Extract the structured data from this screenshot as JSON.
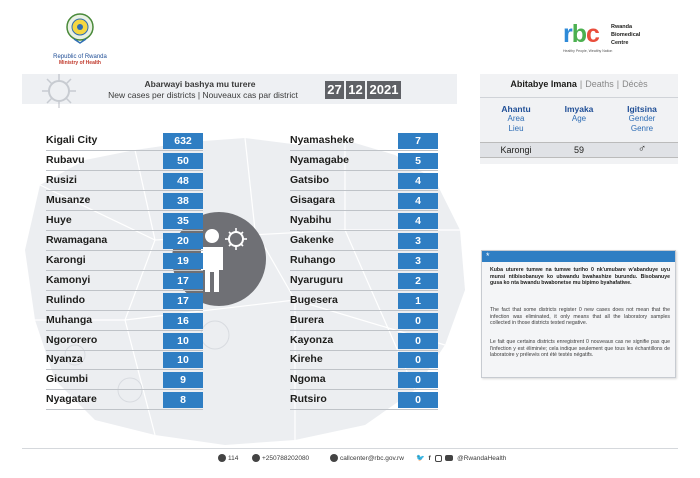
{
  "header": {
    "ministry_line1": "Republic of Rwanda",
    "ministry_line2": "Ministry of Health",
    "rbc_logo_text": "rbc",
    "rbc_name": [
      "Rwanda",
      "Biomedical",
      "Centre"
    ],
    "rbc_tagline": "Healthy People, Wealthy Nation"
  },
  "title": {
    "kinyarwanda": "Abarwayi bashya mu turere",
    "english_french": "New cases per districts  |  Nouveaux cas par district"
  },
  "date": {
    "day": "27",
    "month": "12",
    "year": "2021"
  },
  "districts_left": [
    {
      "name": "Kigali City",
      "cases": "632"
    },
    {
      "name": "Rubavu",
      "cases": "50"
    },
    {
      "name": "Rusizi",
      "cases": "48"
    },
    {
      "name": "Musanze",
      "cases": "38"
    },
    {
      "name": "Huye",
      "cases": "35"
    },
    {
      "name": "Rwamagana",
      "cases": "20"
    },
    {
      "name": "Karongi",
      "cases": "19"
    },
    {
      "name": "Kamonyi",
      "cases": "17"
    },
    {
      "name": "Rulindo",
      "cases": "17"
    },
    {
      "name": "Muhanga",
      "cases": "16"
    },
    {
      "name": "Ngororero",
      "cases": "10"
    },
    {
      "name": "Nyanza",
      "cases": "10"
    },
    {
      "name": "Gicumbi",
      "cases": "9"
    },
    {
      "name": "Nyagatare",
      "cases": "8"
    }
  ],
  "districts_right": [
    {
      "name": "Nyamasheke",
      "cases": "7"
    },
    {
      "name": "Nyamagabe",
      "cases": "5"
    },
    {
      "name": "Gatsibo",
      "cases": "4"
    },
    {
      "name": "Gisagara",
      "cases": "4"
    },
    {
      "name": "Nyabihu",
      "cases": "4"
    },
    {
      "name": "Gakenke",
      "cases": "3"
    },
    {
      "name": "Ruhango",
      "cases": "3"
    },
    {
      "name": "Nyaruguru",
      "cases": "2"
    },
    {
      "name": "Bugesera",
      "cases": "1"
    },
    {
      "name": "Burera",
      "cases": "0"
    },
    {
      "name": "Kayonza",
      "cases": "0"
    },
    {
      "name": "Kirehe",
      "cases": "0"
    },
    {
      "name": "Ngoma",
      "cases": "0"
    },
    {
      "name": "Rutsiro",
      "cases": "0"
    }
  ],
  "deaths": {
    "title_rw": "Abitabye Imana",
    "title_en": "Deaths",
    "title_fr": "Décès",
    "columns": [
      {
        "rw": "Ahantu",
        "en": "Area",
        "fr": "Lieu"
      },
      {
        "rw": "Imyaka",
        "en": "Age",
        "fr": ""
      },
      {
        "rw": "Igitsina",
        "en": "Gender",
        "fr": "Genre"
      }
    ],
    "row": {
      "area": "Karongi",
      "age": "59",
      "gender": "♂"
    }
  },
  "note": {
    "star": "*",
    "rw": "Kuba uturere tumwe na tumwe turiho 0 nk'umubare w'abanduye uyu munsi ntibisobanuye ko ubwandu bwahashize burundu. Bisobanuye gusa ko nta bwandu bwabonetse mu bipimo byahafatiwe.",
    "en": "The fact that some districts register 0 new cases does not mean that the infection was eliminated, it only means that all the laboratory samples collected in those districts tested negative.",
    "fr": "Le fait que certains districts enregistrent 0 nouveaux cas ne signifie pas que l'infection y est éliminée; cela indique seulement que tous les échantillons de laboratoire y prélevés ont été testés négatifs."
  },
  "footer": {
    "hotline": "114",
    "phone": "+250788202080",
    "email": "callcenter@rbc.gov.rw",
    "social": "@RwandaHealth"
  },
  "colors": {
    "value_box": "#2f7ec3",
    "date_box": "#5f6166",
    "circle": "#6f7075",
    "map": "#eceef1"
  },
  "icons": [
    "rwanda-seal-icon",
    "virus-icon",
    "person-virus-icon",
    "male-icon",
    "phone-icon",
    "email-icon",
    "twitter-icon",
    "facebook-icon",
    "instagram-icon",
    "youtube-icon"
  ]
}
